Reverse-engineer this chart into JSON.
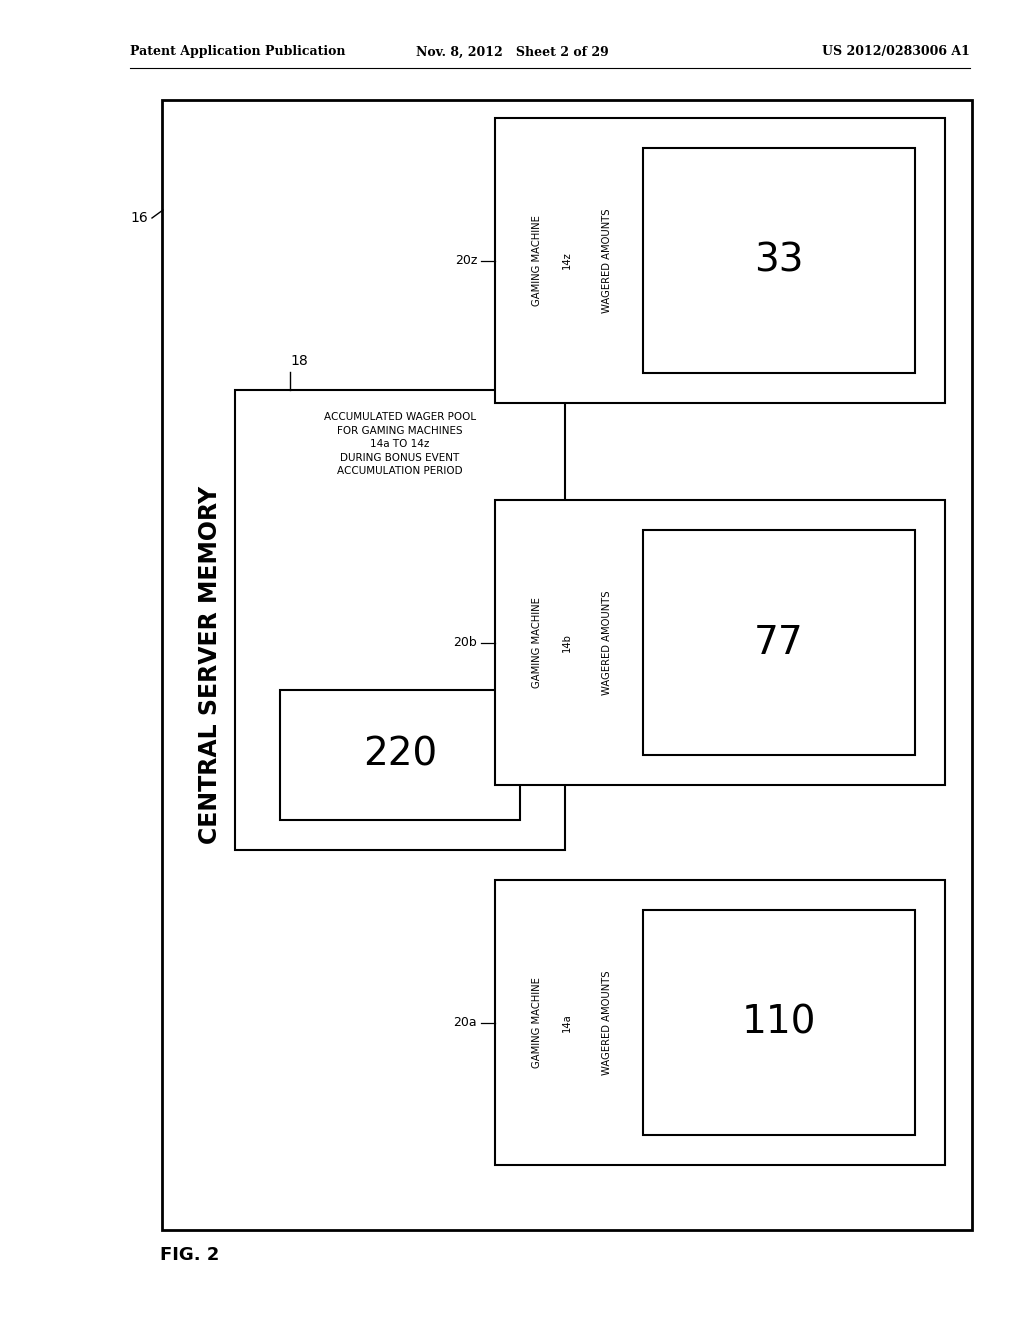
{
  "bg_color": "#ffffff",
  "header_left": "Patent Application Publication",
  "header_mid": "Nov. 8, 2012   Sheet 2 of 29",
  "header_right": "US 2012/0283006 A1",
  "fig_label": "FIG. 2",
  "outer_box_label": "CENTRAL SERVER MEMORY",
  "outer_label_ref": "16",
  "inner_pool_label_ref": "18",
  "pool_box_text_lines": [
    "ACCUMULATED WAGER POOL",
    "FOR GAMING MACHINES",
    "14a TO 14z",
    "DURING BONUS EVENT",
    "ACCUMULATION PERIOD"
  ],
  "pool_value": "220",
  "gaming_machines": [
    {
      "ref_label": "20z",
      "machine_name": "GAMING MACHINE",
      "machine_id": "14z",
      "wager_label": "WAGERED AMOUNTS",
      "value": "33"
    },
    {
      "ref_label": "20b",
      "machine_name": "GAMING MACHINE",
      "machine_id": "14b",
      "wager_label": "WAGERED AMOUNTS",
      "value": "77"
    },
    {
      "ref_label": "20a",
      "machine_name": "GAMING MACHINE",
      "machine_id": "14a",
      "wager_label": "WAGERED AMOUNTS",
      "value": "110"
    }
  ]
}
